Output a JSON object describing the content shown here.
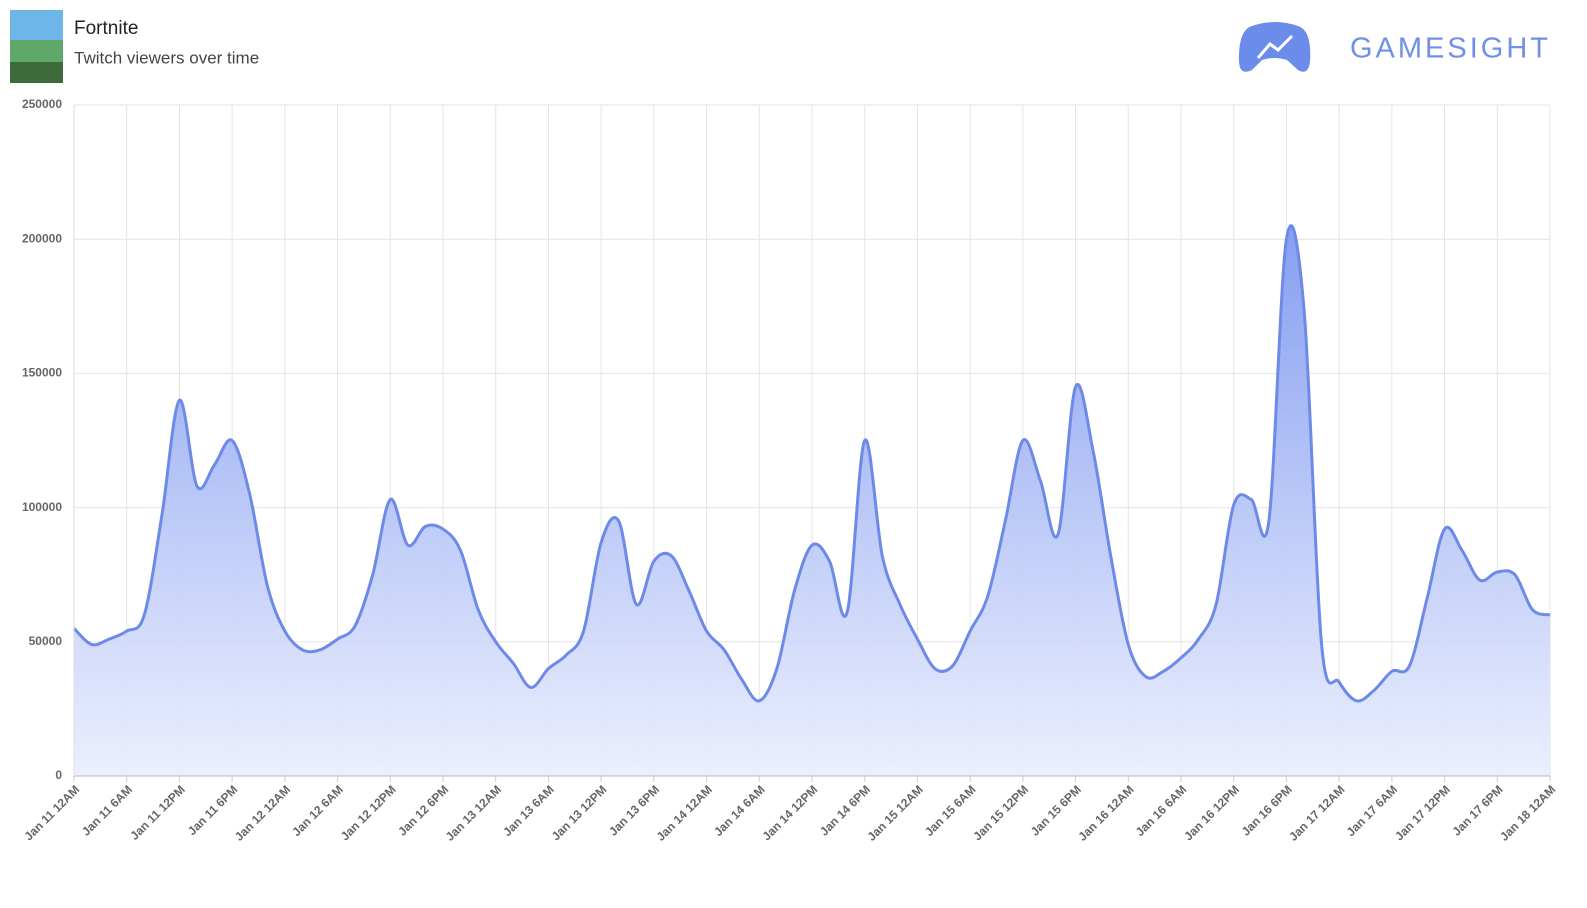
{
  "header": {
    "title": "Fortnite",
    "subtitle": "Twitch viewers over time",
    "brand": "GAMESIGHT"
  },
  "chart_data": {
    "type": "area",
    "categories": [
      "Jan 11 12AM",
      null,
      null,
      "Jan 11 6AM",
      null,
      null,
      "Jan 11 12PM",
      null,
      null,
      "Jan 11 6PM",
      null,
      null,
      "Jan 12 12AM",
      null,
      null,
      "Jan 12 6AM",
      null,
      null,
      "Jan 12 12PM",
      null,
      null,
      "Jan 12 6PM",
      null,
      null,
      "Jan 13 12AM",
      null,
      null,
      "Jan 13 6AM",
      null,
      null,
      "Jan 13 12PM",
      null,
      null,
      "Jan 13 6PM",
      null,
      null,
      "Jan 14 12AM",
      null,
      null,
      "Jan 14 6AM",
      null,
      null,
      "Jan 14 12PM",
      null,
      null,
      "Jan 14 6PM",
      null,
      null,
      "Jan 15 12AM",
      null,
      null,
      "Jan 15 6AM",
      null,
      null,
      "Jan 15 12PM",
      null,
      null,
      "Jan 15 6PM",
      null,
      null,
      "Jan 16 12AM",
      null,
      null,
      "Jan 16 6AM",
      null,
      null,
      "Jan 16 12PM",
      null,
      null,
      "Jan 16 6PM",
      null,
      null,
      "Jan 17 12AM",
      null,
      null,
      "Jan 17 6AM",
      null,
      null,
      "Jan 17 12PM",
      null,
      null,
      "Jan 17 6PM",
      null,
      null,
      "Jan 18 12AM"
    ],
    "values": [
      55000,
      49000,
      51000,
      54000,
      60000,
      97000,
      140000,
      108000,
      116000,
      125000,
      105000,
      71000,
      54000,
      47000,
      47000,
      51000,
      56000,
      75000,
      103000,
      86000,
      93000,
      92000,
      84000,
      62000,
      50000,
      42000,
      33000,
      40000,
      45000,
      54000,
      87000,
      95000,
      64000,
      80000,
      82000,
      69000,
      54000,
      47000,
      36000,
      28000,
      40000,
      69000,
      86000,
      80000,
      61000,
      125000,
      82000,
      64000,
      51000,
      40000,
      41000,
      54000,
      67000,
      95000,
      125000,
      110000,
      90000,
      145000,
      121000,
      82000,
      49000,
      37000,
      39000,
      44000,
      51000,
      64000,
      101000,
      103000,
      95000,
      200000,
      174000,
      49000,
      35000,
      28000,
      32000,
      39000,
      41000,
      66000,
      92000,
      84000,
      73000,
      76000,
      75000,
      62000,
      60000
    ],
    "color": "#6d8ae8",
    "ylim": [
      0,
      250000
    ],
    "yticks": [
      0,
      50000,
      100000,
      150000,
      200000,
      250000
    ],
    "grid": true
  }
}
